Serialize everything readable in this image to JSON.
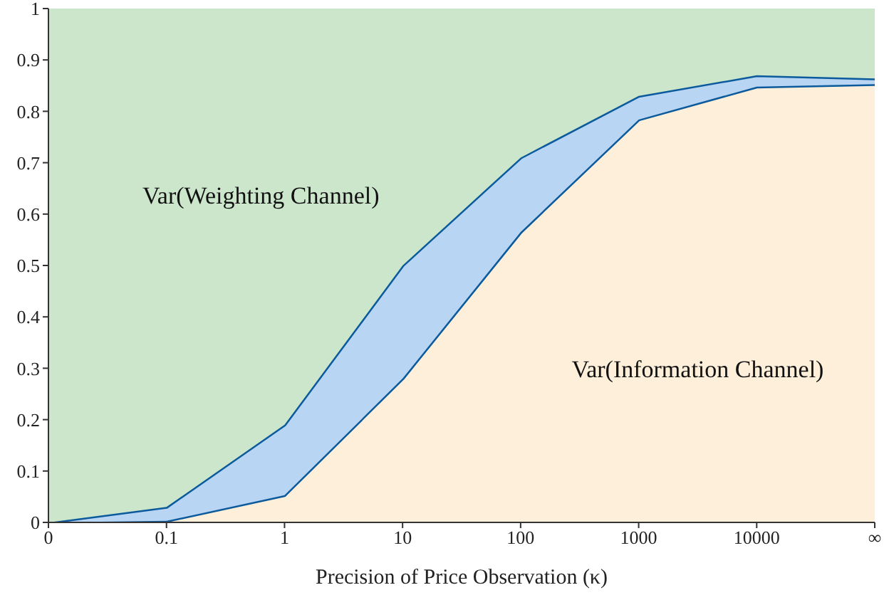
{
  "chart_data": {
    "type": "area",
    "stacked": true,
    "xlabel": "Precision of Price Observation (κ)",
    "categories": [
      "0",
      "0.1",
      "1",
      "10",
      "100",
      "1000",
      "10000",
      "∞"
    ],
    "series": [
      {
        "name": "Var(Information Channel)",
        "color": "#fdefd9",
        "values": [
          0,
          0.003,
          0.053,
          0.28,
          0.565,
          0.784,
          0.848,
          0.853
        ]
      },
      {
        "color": "#b9d5f4",
        "values": [
          0,
          0.027,
          0.137,
          0.22,
          0.145,
          0.046,
          0.022,
          0.011
        ]
      },
      {
        "name": "Var(Weighting Channel)",
        "color": "#cce6cc",
        "values": [
          1,
          0.97,
          0.81,
          0.5,
          0.29,
          0.17,
          0.13,
          0.136
        ]
      }
    ],
    "ylim": [
      0,
      1
    ],
    "yticks": [
      0,
      0.1,
      0.2,
      0.3,
      0.4,
      0.5,
      0.6,
      0.7,
      0.8,
      0.9,
      1
    ],
    "grid": false
  }
}
